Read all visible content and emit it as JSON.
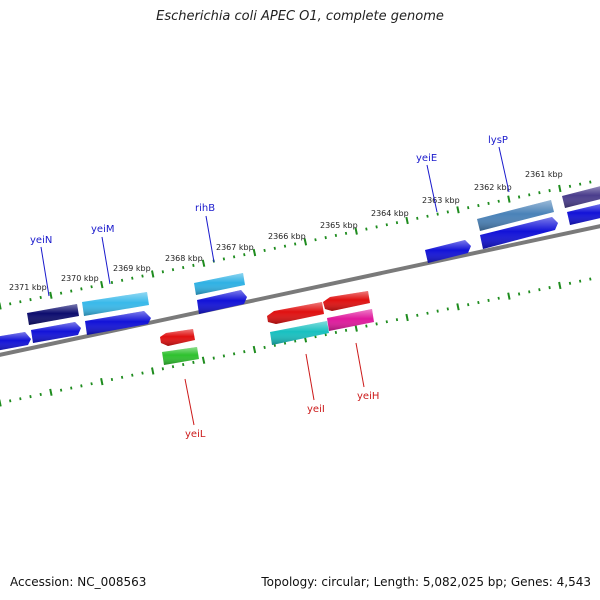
{
  "title": "Escherichia coli APEC O1, complete genome",
  "footer": {
    "accession": "Accession: NC_008563",
    "stats": "Topology: circular; Length: 5,082,025 bp; Genes: 4,543"
  },
  "colors": {
    "backbone": "#7a7a7a",
    "tick": "#1e8c1e",
    "label_forward": "#1a1acc",
    "label_reverse": "#cc1a1a"
  },
  "kbp_labels": [
    "2371 kbp",
    "2370 kbp",
    "2369 kbp",
    "2368 kbp",
    "2367 kbp",
    "2366 kbp",
    "2365 kbp",
    "2364 kbp",
    "2363 kbp",
    "2362 kbp",
    "2361 kbp"
  ],
  "gene_labels": {
    "yeiN": "yeiN",
    "yeiM": "yeiM",
    "rihB": "rihB",
    "yeiE": "yeiE",
    "lysP": "lysP",
    "yeiL": "yeiL",
    "yeiI": "yeiI",
    "yeiH": "yeiH"
  }
}
